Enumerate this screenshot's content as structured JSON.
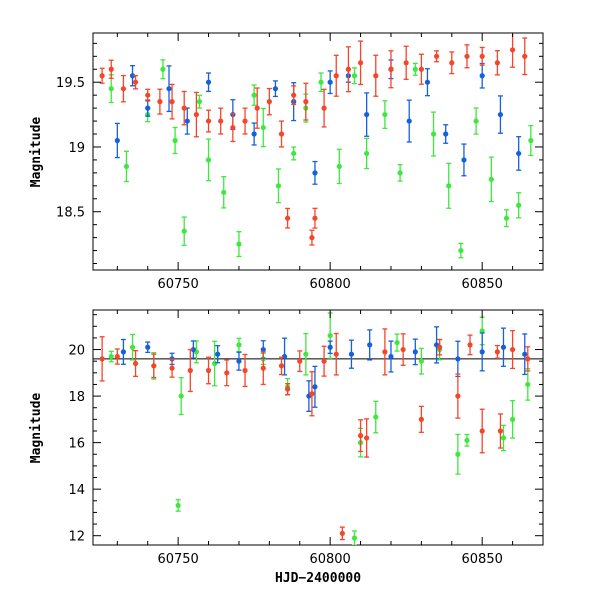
{
  "chart_data": [
    {
      "type": "scatter",
      "title": "",
      "xlabel": "",
      "ylabel": "Magnitude",
      "xlim": [
        60722,
        60870
      ],
      "ylim": [
        19.88,
        18.05
      ],
      "y_inverted": true,
      "x_ticks": [
        60750,
        60800,
        60850
      ],
      "x_tick_labels": [
        "60750",
        "60800",
        "60850"
      ],
      "y_ticks": [
        18.5,
        19,
        19.5
      ],
      "y_tick_labels": [
        "18.5",
        "19",
        "19.5"
      ],
      "error_bars": true,
      "grid": false,
      "colors": {
        "blue": "#1560e0",
        "red": "#f5452a",
        "green": "#3ee83e"
      },
      "series": [
        {
          "color": "green",
          "x": [
            60728,
            60733,
            60740,
            60745,
            60749,
            60752,
            60757,
            60760,
            60765,
            60770,
            60775,
            60778,
            60783,
            60788,
            60792,
            60797,
            60803,
            60808,
            60812,
            60818,
            60823,
            60828,
            60834,
            60839,
            60843,
            60848,
            60853,
            60858,
            60862,
            60866
          ],
          "y": [
            19.45,
            18.85,
            19.25,
            19.6,
            19.05,
            18.35,
            19.35,
            18.9,
            18.65,
            18.25,
            19.4,
            19.15,
            18.7,
            18.95,
            19.3,
            19.5,
            18.85,
            19.55,
            18.95,
            19.25,
            18.8,
            19.6,
            19.1,
            18.7,
            18.2,
            19.2,
            18.75,
            18.45,
            18.55,
            19.05
          ]
        },
        {
          "color": "blue",
          "x": [
            60730,
            60735,
            60740,
            60747,
            60753,
            60760,
            60768,
            60775,
            60782,
            60788,
            60795,
            60800,
            60806,
            60812,
            60820,
            60826,
            60832,
            60838,
            60844,
            60850,
            60856,
            60862
          ],
          "y": [
            19.05,
            19.55,
            19.3,
            19.45,
            19.2,
            19.5,
            19.25,
            19.1,
            19.45,
            19.35,
            18.8,
            19.5,
            19.55,
            19.25,
            19.6,
            19.2,
            19.5,
            19.1,
            18.9,
            19.55,
            19.25,
            18.95
          ]
        },
        {
          "color": "red",
          "x": [
            60725,
            60728,
            60732,
            60736,
            60740,
            60744,
            60748,
            60752,
            60756,
            60760,
            60764,
            60768,
            60772,
            60776,
            60780,
            60784,
            60786,
            60788,
            60792,
            60794,
            60795,
            60798,
            60802,
            60806,
            60810,
            60815,
            60820,
            60825,
            60830,
            60835,
            60840,
            60845,
            60850,
            60855,
            60860,
            60864
          ],
          "y": [
            19.55,
            19.6,
            19.45,
            19.5,
            19.4,
            19.35,
            19.35,
            19.3,
            19.25,
            19.2,
            19.2,
            19.15,
            19.2,
            19.3,
            19.35,
            19.1,
            18.45,
            19.4,
            19.35,
            18.3,
            18.45,
            19.3,
            19.55,
            19.6,
            19.65,
            19.55,
            19.6,
            19.65,
            19.6,
            19.7,
            19.65,
            19.7,
            19.7,
            19.65,
            19.75,
            19.7
          ]
        }
      ]
    },
    {
      "type": "scatter",
      "title": "",
      "xlabel": "HJD−2400000",
      "ylabel": "Magnitude",
      "xlim": [
        60722,
        60870
      ],
      "ylim": [
        21.7,
        11.6
      ],
      "y_inverted": true,
      "x_ticks": [
        60750,
        60800,
        60850
      ],
      "x_tick_labels": [
        "60750",
        "60800",
        "60850"
      ],
      "y_ticks": [
        12,
        14,
        16,
        18,
        20
      ],
      "y_tick_labels": [
        "12",
        "14",
        "16",
        "18",
        "20"
      ],
      "error_bars": true,
      "grid": false,
      "reference_line_y": 19.6,
      "colors": {
        "blue": "#1560e0",
        "red": "#f5452a",
        "green": "#3ee83e"
      },
      "series": [
        {
          "color": "green",
          "x": [
            60728,
            60735,
            60742,
            60750,
            60751,
            60756,
            60762,
            60770,
            60778,
            60786,
            60792,
            60800,
            60808,
            60810,
            60815,
            60822,
            60830,
            60836,
            60842,
            60845,
            60850,
            60857,
            60860,
            60865
          ],
          "y": [
            19.7,
            20.1,
            19.3,
            13.3,
            18.0,
            19.9,
            19.4,
            20.2,
            19.6,
            18.4,
            19.8,
            20.6,
            11.9,
            16.0,
            17.1,
            20.3,
            19.5,
            20.0,
            15.5,
            16.1,
            20.8,
            16.2,
            17.0,
            18.5
          ]
        },
        {
          "color": "blue",
          "x": [
            60732,
            60740,
            60748,
            60755,
            60763,
            60770,
            60778,
            60785,
            60793,
            60795,
            60800,
            60807,
            60813,
            60820,
            60828,
            60835,
            60842,
            60850,
            60857,
            60864
          ],
          "y": [
            19.9,
            20.1,
            19.6,
            20.0,
            19.8,
            19.5,
            20.0,
            19.7,
            18.0,
            18.4,
            20.1,
            19.8,
            20.2,
            19.7,
            19.9,
            20.2,
            19.6,
            19.9,
            20.1,
            19.8
          ]
        },
        {
          "color": "red",
          "x": [
            60725,
            60730,
            60736,
            60742,
            60748,
            60754,
            60760,
            60766,
            60772,
            60778,
            60784,
            60786,
            60790,
            60794,
            60798,
            60802,
            60804,
            60810,
            60812,
            60818,
            60824,
            60830,
            60836,
            60842,
            60846,
            60850,
            60855,
            60856,
            60860,
            60865
          ],
          "y": [
            19.6,
            19.7,
            19.4,
            19.3,
            19.2,
            19.1,
            19.1,
            19.0,
            19.1,
            19.2,
            19.3,
            18.3,
            19.5,
            18.1,
            19.5,
            19.8,
            12.1,
            16.3,
            16.2,
            19.9,
            20.0,
            17.0,
            20.1,
            18.0,
            20.2,
            16.5,
            19.9,
            16.5,
            20.0,
            19.6
          ]
        }
      ]
    }
  ]
}
